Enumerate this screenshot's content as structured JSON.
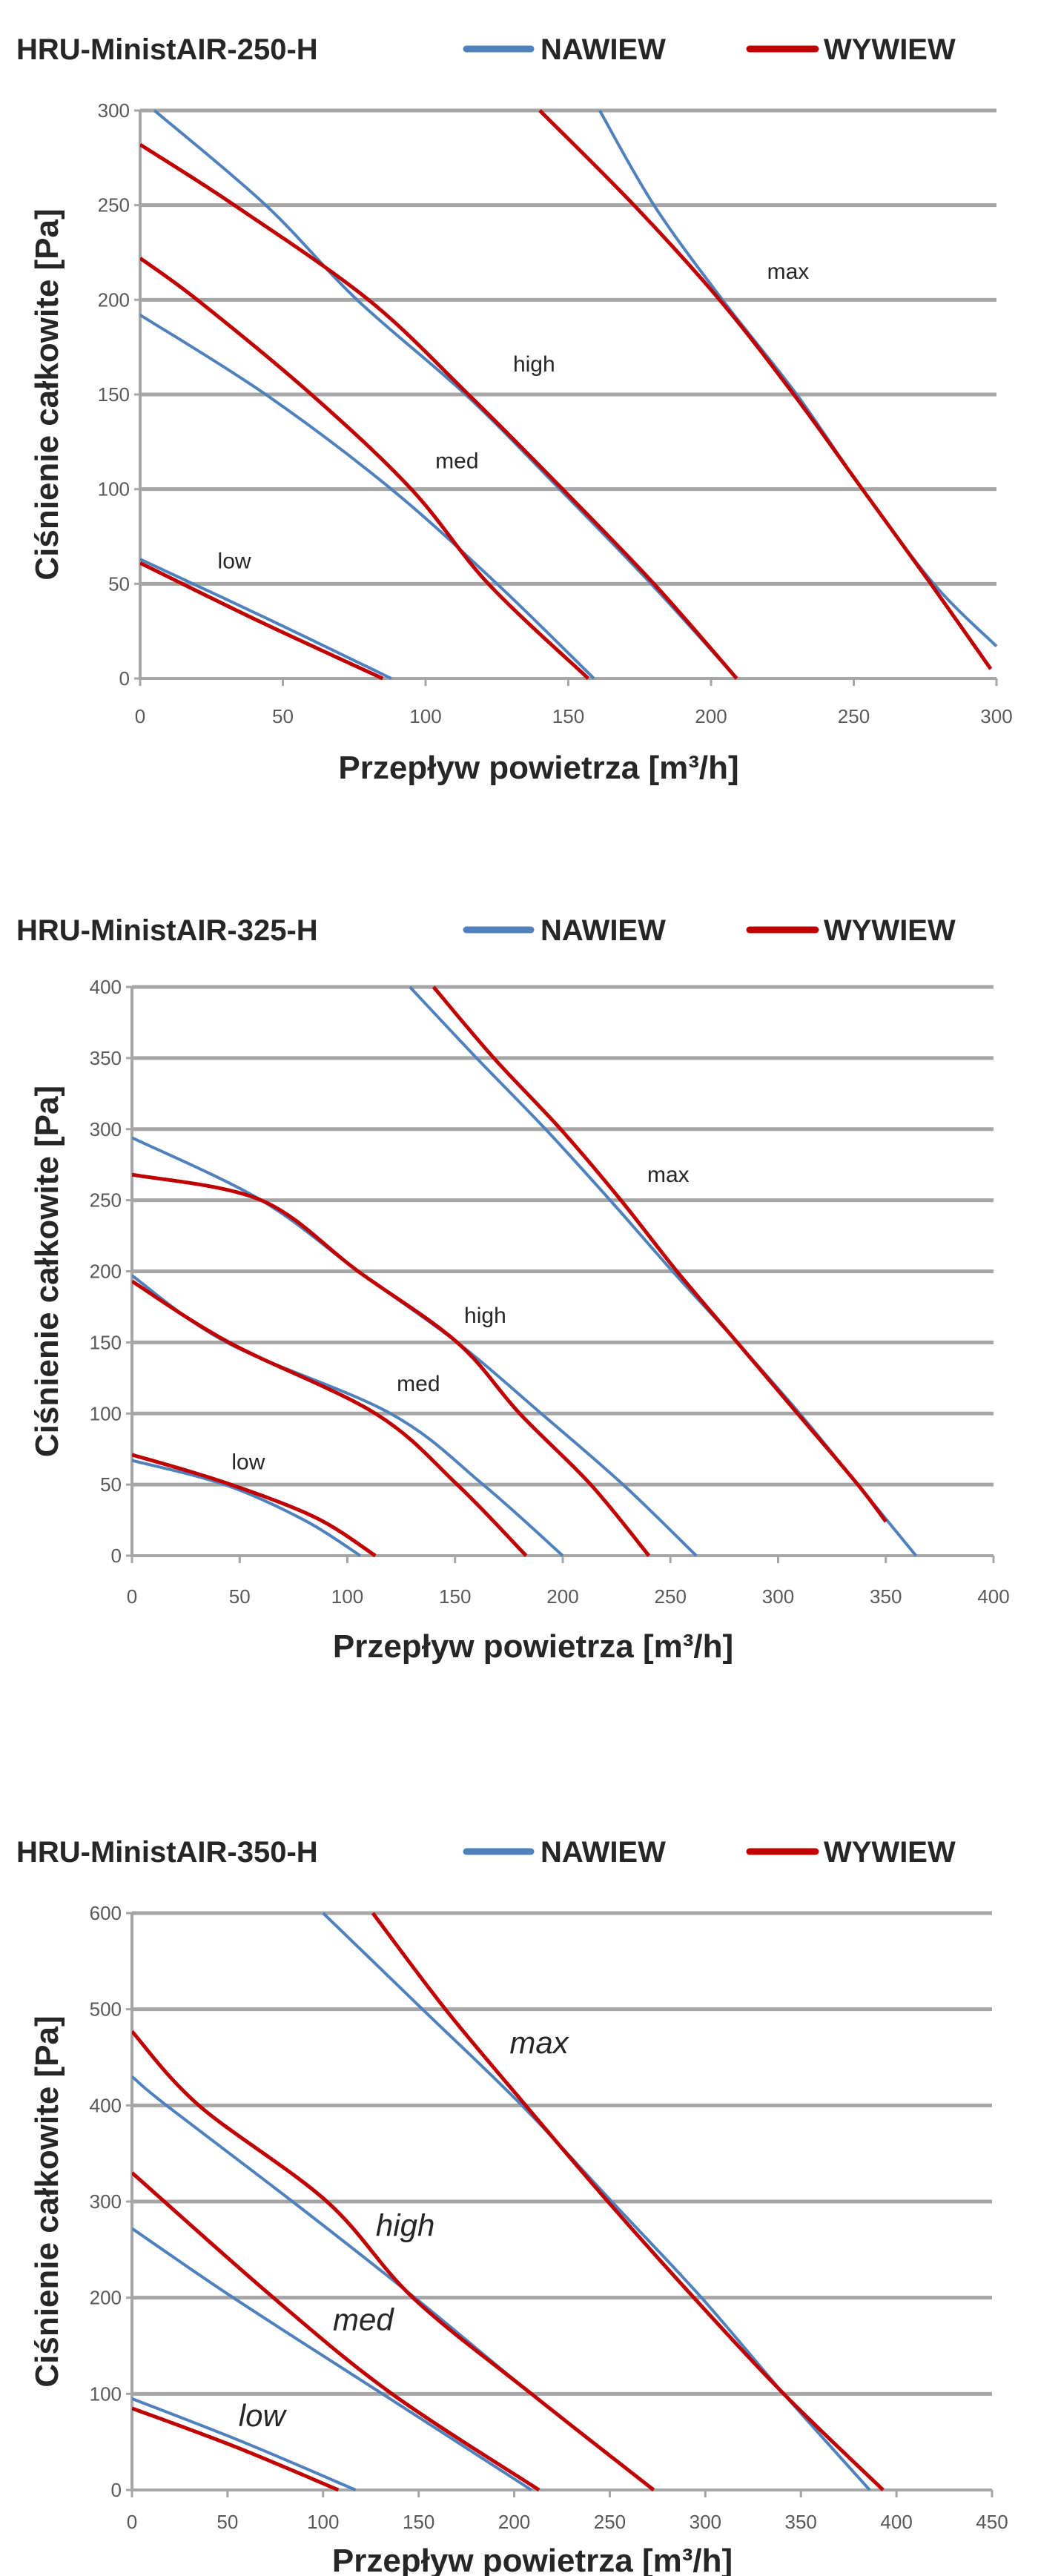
{
  "chart_data": [
    {
      "type": "line",
      "title": "HRU-MinistAIR-250-H",
      "xlabel": "Przepływ powietrza [m³/h]",
      "ylabel": "Ciśnienie całkowite [Pa]",
      "xlim": [
        0,
        300
      ],
      "ylim": [
        0,
        300
      ],
      "xticks": [
        "0",
        "50",
        "100",
        "150",
        "200",
        "250",
        "300"
      ],
      "yticks": [
        "0",
        "50",
        "100",
        "150",
        "200",
        "250",
        "300"
      ],
      "grid": "horizontal",
      "legend": {
        "placement": "top-right",
        "entries": [
          {
            "name": "NAWIEW",
            "color": "#4f81bd"
          },
          {
            "name": "WYWIEW",
            "color": "#c00000"
          }
        ]
      },
      "labels_italic": false,
      "curve_labels": [
        {
          "text": "low",
          "x": 33,
          "y": 62
        },
        {
          "text": "med",
          "x": 111,
          "y": 115
        },
        {
          "text": "high",
          "x": 138,
          "y": 166
        },
        {
          "text": "max",
          "x": 227,
          "y": 215
        }
      ],
      "series": [
        {
          "name": "NAWIEW",
          "speed": "low",
          "points": [
            [
              0,
              63
            ],
            [
              44,
              32
            ],
            [
              88,
              0
            ]
          ]
        },
        {
          "name": "WYWIEW",
          "speed": "low",
          "points": [
            [
              0,
              61
            ],
            [
              42,
              30
            ],
            [
              85,
              0
            ]
          ]
        },
        {
          "name": "NAWIEW",
          "speed": "med",
          "points": [
            [
              0,
              192
            ],
            [
              44,
              150
            ],
            [
              88,
              100
            ],
            [
              125,
              50
            ],
            [
              159,
              0
            ]
          ]
        },
        {
          "name": "WYWIEW",
          "speed": "med",
          "points": [
            [
              0,
              222
            ],
            [
              20,
              200
            ],
            [
              60,
              150
            ],
            [
              95,
              100
            ],
            [
              122,
              50
            ],
            [
              157,
              0
            ]
          ]
        },
        {
          "name": "NAWIEW",
          "speed": "high",
          "points": [
            [
              5,
              300
            ],
            [
              44,
              250
            ],
            [
              76,
              200
            ],
            [
              114,
              150
            ],
            [
              147,
              100
            ],
            [
              179,
              50
            ],
            [
              209,
              0
            ]
          ]
        },
        {
          "name": "WYWIEW",
          "speed": "high",
          "points": [
            [
              0,
              282
            ],
            [
              33,
              250
            ],
            [
              80,
              200
            ],
            [
              115,
              150
            ],
            [
              148,
              100
            ],
            [
              180,
              50
            ],
            [
              209,
              0
            ]
          ]
        },
        {
          "name": "NAWIEW",
          "speed": "max",
          "points": [
            [
              161,
              300
            ],
            [
              180,
              250
            ],
            [
              204,
              200
            ],
            [
              230,
              150
            ],
            [
              253,
              100
            ],
            [
              278,
              50
            ],
            [
              300,
              17
            ]
          ]
        },
        {
          "name": "WYWIEW",
          "speed": "max",
          "points": [
            [
              140,
              300
            ],
            [
              173,
              250
            ],
            [
              203,
              200
            ],
            [
              229,
              150
            ],
            [
              253,
              100
            ],
            [
              277,
              50
            ],
            [
              298,
              5
            ]
          ]
        }
      ]
    },
    {
      "type": "line",
      "title": "HRU-MinistAIR-325-H",
      "xlabel": "Przepływ powietrza [m³/h]",
      "ylabel": "Ciśnienie całkowite [Pa]",
      "xlim": [
        0,
        400
      ],
      "ylim": [
        0,
        400
      ],
      "xticks": [
        "0",
        "50",
        "100",
        "150",
        "200",
        "250",
        "300",
        "350",
        "400"
      ],
      "yticks": [
        "0",
        "50",
        "100",
        "150",
        "200",
        "250",
        "300",
        "350",
        "400"
      ],
      "grid": "horizontal",
      "legend": {
        "placement": "top-right",
        "entries": [
          {
            "name": "NAWIEW",
            "color": "#4f81bd"
          },
          {
            "name": "WYWIEW",
            "color": "#c00000"
          }
        ]
      },
      "labels_italic": false,
      "curve_labels": [
        {
          "text": "low",
          "x": 54,
          "y": 66
        },
        {
          "text": "med",
          "x": 133,
          "y": 121
        },
        {
          "text": "high",
          "x": 164,
          "y": 169
        },
        {
          "text": "max",
          "x": 249,
          "y": 268
        }
      ],
      "series": [
        {
          "name": "NAWIEW",
          "speed": "low",
          "points": [
            [
              0,
              67
            ],
            [
              43,
              50
            ],
            [
              80,
              25
            ],
            [
              106,
              0
            ]
          ]
        },
        {
          "name": "WYWIEW",
          "speed": "low",
          "points": [
            [
              0,
              71
            ],
            [
              42,
              52
            ],
            [
              85,
              27
            ],
            [
              113,
              0
            ]
          ]
        },
        {
          "name": "NAWIEW",
          "speed": "med",
          "points": [
            [
              0,
              197
            ],
            [
              44,
              150
            ],
            [
              120,
              100
            ],
            [
              163,
              50
            ],
            [
              200,
              0
            ]
          ]
        },
        {
          "name": "WYWIEW",
          "speed": "med",
          "points": [
            [
              0,
              193
            ],
            [
              45,
              150
            ],
            [
              113,
              100
            ],
            [
              151,
              50
            ],
            [
              183,
              0
            ]
          ]
        },
        {
          "name": "NAWIEW",
          "speed": "high",
          "points": [
            [
              0,
              294
            ],
            [
              60,
              250
            ],
            [
              105,
              200
            ],
            [
              151,
              150
            ],
            [
              190,
              100
            ],
            [
              228,
              50
            ],
            [
              262,
              0
            ]
          ]
        },
        {
          "name": "WYWIEW",
          "speed": "high",
          "points": [
            [
              0,
              268
            ],
            [
              60,
              250
            ],
            [
              105,
              200
            ],
            [
              151,
              150
            ],
            [
              180,
              100
            ],
            [
              213,
              50
            ],
            [
              240,
              0
            ]
          ]
        },
        {
          "name": "NAWIEW",
          "speed": "max",
          "points": [
            [
              129,
              400
            ],
            [
              160,
              350
            ],
            [
              192,
              300
            ],
            [
              222,
              250
            ],
            [
              251,
              200
            ],
            [
              281,
              150
            ],
            [
              310,
              100
            ],
            [
              337,
              50
            ],
            [
              364,
              0
            ]
          ]
        },
        {
          "name": "WYWIEW",
          "speed": "max",
          "points": [
            [
              140,
              400
            ],
            [
              168,
              350
            ],
            [
              199,
              300
            ],
            [
              227,
              250
            ],
            [
              253,
              200
            ],
            [
              281,
              150
            ],
            [
              309,
              100
            ],
            [
              337,
              50
            ],
            [
              350,
              24
            ]
          ]
        }
      ]
    },
    {
      "type": "line",
      "title": "HRU-MinistAIR-350-H",
      "xlabel": "Przepływ powietrza [m³/h]",
      "ylabel": "Ciśnienie całkowite [Pa]",
      "xlim": [
        0,
        450
      ],
      "ylim": [
        0,
        600
      ],
      "xticks": [
        "0",
        "50",
        "100",
        "150",
        "200",
        "250",
        "300",
        "350",
        "400",
        "450"
      ],
      "yticks": [
        "0",
        "100",
        "200",
        "300",
        "400",
        "500",
        "600"
      ],
      "grid": "horizontal",
      "legend": {
        "placement": "top-right",
        "entries": [
          {
            "name": "NAWIEW",
            "color": "#4f81bd"
          },
          {
            "name": "WYWIEW",
            "color": "#c00000"
          }
        ]
      },
      "labels_italic": true,
      "curve_labels": [
        {
          "text": "low",
          "x": 68,
          "y": 74
        },
        {
          "text": "med",
          "x": 121,
          "y": 174
        },
        {
          "text": "high",
          "x": 143,
          "y": 272
        },
        {
          "text": "max",
          "x": 213,
          "y": 462
        }
      ],
      "series": [
        {
          "name": "NAWIEW",
          "speed": "low",
          "points": [
            [
              0,
              95
            ],
            [
              58,
              50
            ],
            [
              117,
              0
            ]
          ]
        },
        {
          "name": "WYWIEW",
          "speed": "low",
          "points": [
            [
              0,
              85
            ],
            [
              54,
              45
            ],
            [
              108,
              0
            ]
          ]
        },
        {
          "name": "NAWIEW",
          "speed": "med",
          "points": [
            [
              0,
              272
            ],
            [
              53,
              200
            ],
            [
              131,
              100
            ],
            [
              209,
              0
            ]
          ]
        },
        {
          "name": "WYWIEW",
          "speed": "med",
          "points": [
            [
              0,
              330
            ],
            [
              74,
              200
            ],
            [
              136,
              100
            ],
            [
              213,
              0
            ]
          ]
        },
        {
          "name": "NAWIEW",
          "speed": "high",
          "points": [
            [
              0,
              430
            ],
            [
              18,
              400
            ],
            [
              84,
              300
            ],
            [
              148,
              200
            ],
            [
              209,
              100
            ],
            [
              273,
              0
            ]
          ]
        },
        {
          "name": "WYWIEW",
          "speed": "high",
          "points": [
            [
              0,
              477
            ],
            [
              35,
              400
            ],
            [
              102,
              300
            ],
            [
              147,
              200
            ],
            [
              209,
              100
            ],
            [
              273,
              0
            ]
          ]
        },
        {
          "name": "NAWIEW",
          "speed": "max",
          "points": [
            [
              100,
              600
            ],
            [
              152,
              500
            ],
            [
              204,
              400
            ],
            [
              251,
              300
            ],
            [
              298,
              200
            ],
            [
              341,
              100
            ],
            [
              386,
              0
            ]
          ]
        },
        {
          "name": "WYWIEW",
          "speed": "max",
          "points": [
            [
              126,
              600
            ],
            [
              164,
              500
            ],
            [
              206,
              400
            ],
            [
              249,
              300
            ],
            [
              294,
              200
            ],
            [
              341,
              100
            ],
            [
              393,
              0
            ]
          ]
        }
      ]
    }
  ]
}
